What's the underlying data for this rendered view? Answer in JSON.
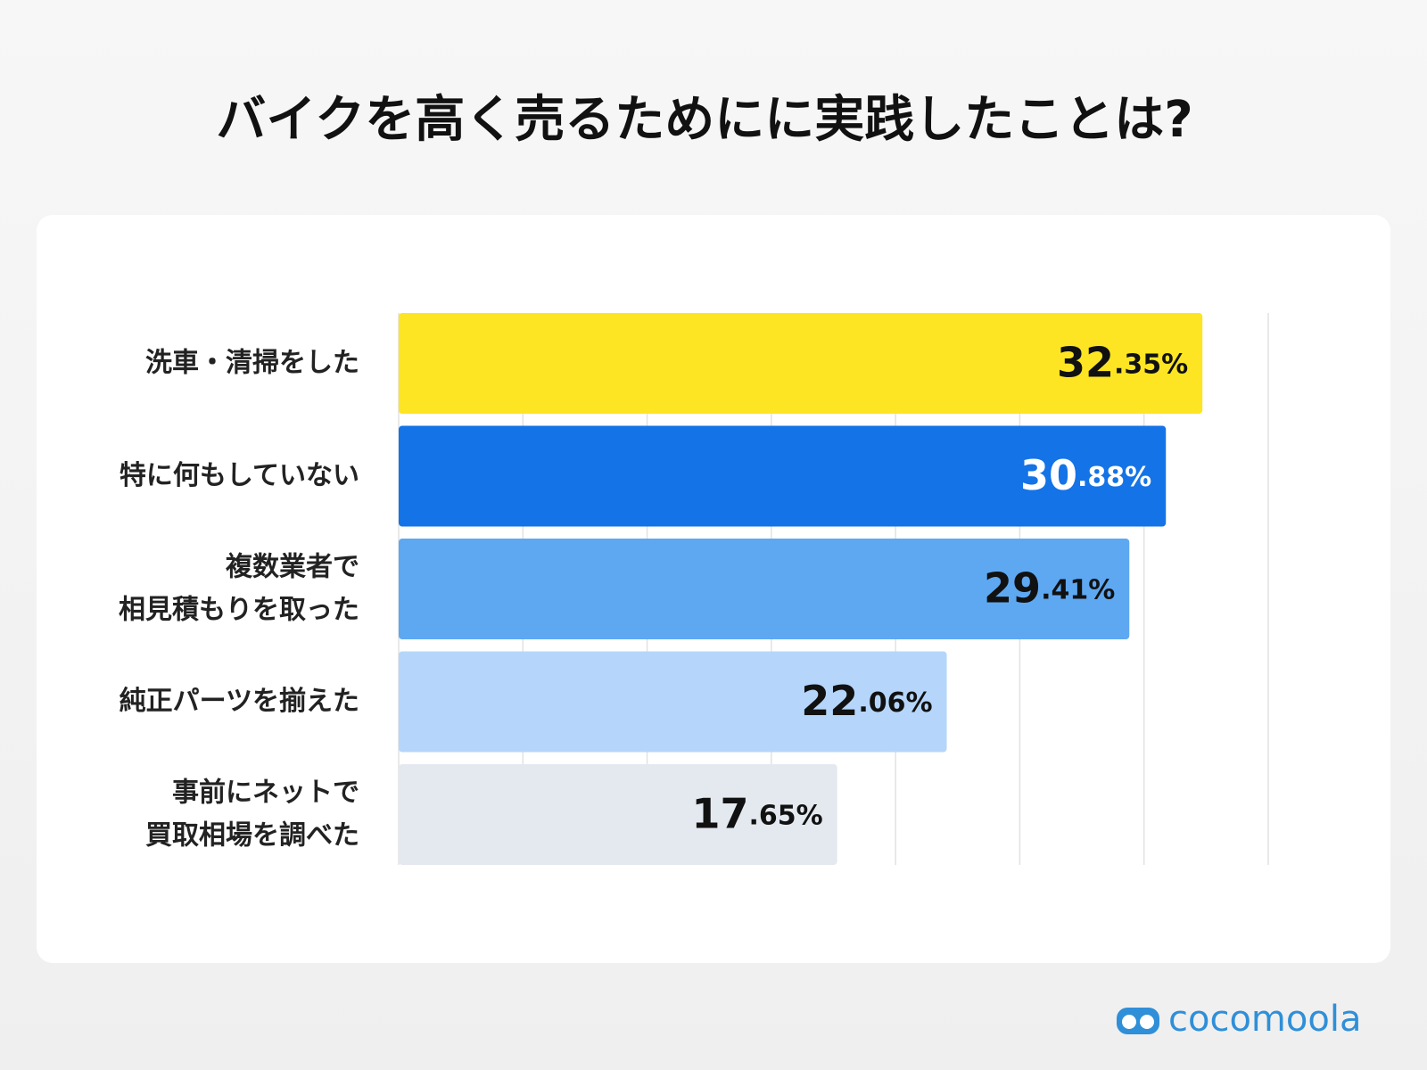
{
  "chart_data": {
    "type": "bar",
    "orientation": "horizontal",
    "title": "バイクを高く売るためにに実践したことは?",
    "categories": [
      "洗車・清掃をした",
      "特に何もしていない",
      "複数業者で\n相見積もりを取った",
      "純正パーツを揃えた",
      "事前にネットで\n買取相場を調べた"
    ],
    "values": [
      32.35,
      30.88,
      29.41,
      22.06,
      17.65
    ],
    "value_labels": [
      "32.35%",
      "30.88%",
      "29.41%",
      "22.06%",
      "17.65%"
    ],
    "colors": [
      "#fde523",
      "#1473e6",
      "#5ea8f2",
      "#b5d6fa",
      "#e4e9f0"
    ],
    "xlim": [
      0,
      35
    ],
    "xticks": [
      0,
      5,
      10,
      15,
      20,
      25,
      30,
      35
    ],
    "grid": true
  },
  "logo": "cocomoola"
}
